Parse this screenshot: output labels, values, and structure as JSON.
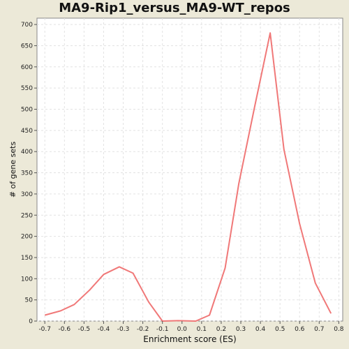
{
  "chart_data": {
    "type": "line",
    "title": "MA9-Rip1_versus_MA9-WT_repos",
    "xlabel": "Enrichment score (ES)",
    "ylabel": "# of gene sets",
    "xlim": [
      -0.74,
      0.82
    ],
    "ylim": [
      0,
      715
    ],
    "x_ticks": [
      -0.7,
      -0.6,
      -0.5,
      -0.4,
      -0.3,
      -0.2,
      -0.1,
      0.0,
      0.1,
      0.2,
      0.3,
      0.4,
      0.5,
      0.6,
      0.7,
      0.8
    ],
    "x_tick_labels": [
      "-0.7",
      "-0.6",
      "-0.5",
      "-0.4",
      "-0.3",
      "-0.2",
      "-0.1",
      "0.0",
      "0.1",
      "0.2",
      "0.3",
      "0.4",
      "0.5",
      "0.6",
      "0.7",
      "0.8"
    ],
    "y_ticks": [
      0,
      50,
      100,
      150,
      200,
      250,
      300,
      350,
      400,
      450,
      500,
      550,
      600,
      650,
      700
    ],
    "grid": true,
    "series": [
      {
        "color": "#f07878",
        "x": [
          -0.7,
          -0.62,
          -0.55,
          -0.47,
          -0.4,
          -0.32,
          -0.25,
          -0.17,
          -0.1,
          -0.02,
          0.07,
          0.14,
          0.22,
          0.29,
          0.37,
          0.45,
          0.52,
          0.6,
          0.68,
          0.76
        ],
        "y": [
          14,
          24,
          39,
          74,
          110,
          128,
          113,
          45,
          0,
          1,
          0,
          14,
          125,
          325,
          505,
          680,
          405,
          230,
          90,
          18
        ]
      }
    ]
  }
}
